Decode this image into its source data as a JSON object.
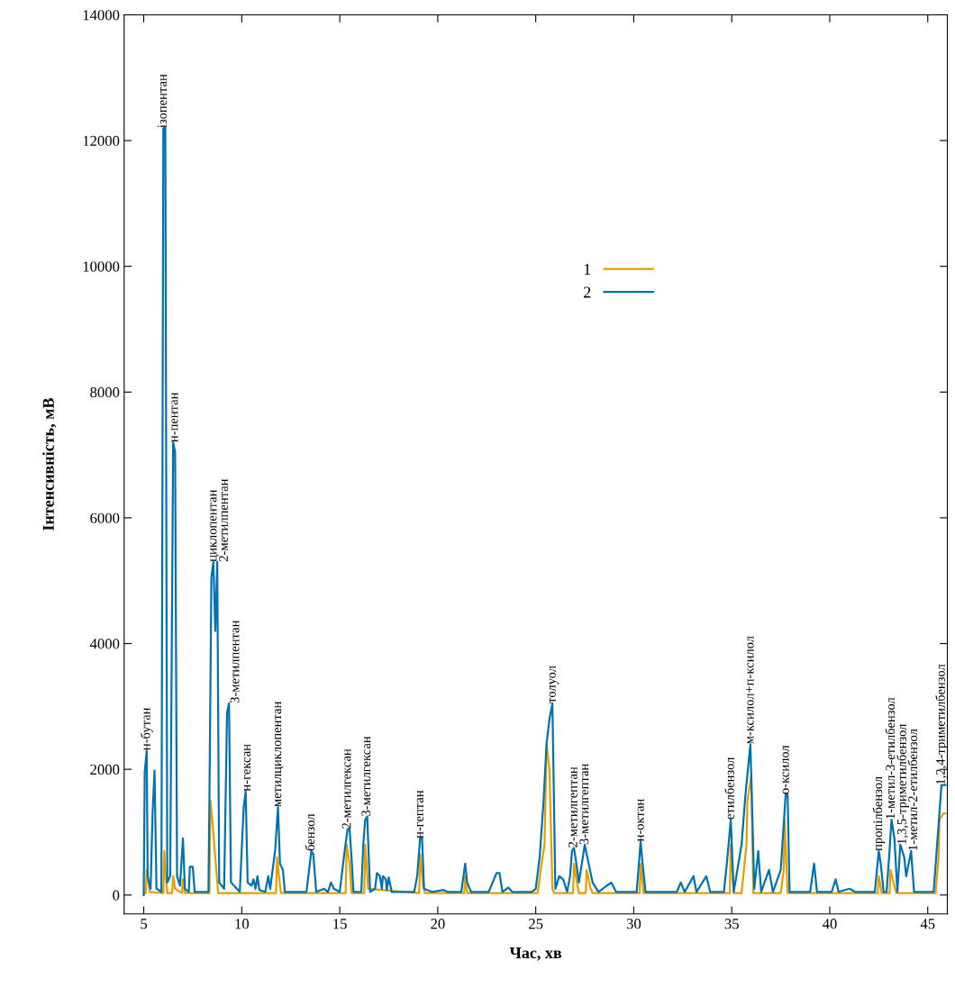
{
  "chart_data": {
    "type": "line",
    "xlabel": "Час, хв",
    "ylabel": "Інтенсивність, мВ",
    "xlim": [
      4,
      46
    ],
    "ylim": [
      -300,
      14000
    ],
    "xticks": [
      5,
      10,
      15,
      20,
      25,
      30,
      35,
      40,
      45
    ],
    "yticks": [
      0,
      2000,
      4000,
      6000,
      8000,
      10000,
      12000,
      14000
    ],
    "grid": false,
    "legend": "top",
    "marker": "none",
    "line_style": "solid",
    "series": [
      {
        "name": "1",
        "color": "#e69f00",
        "x": [
          5.0,
          5.1,
          5.15,
          5.3,
          6.0,
          6.05,
          6.1,
          6.2,
          6.45,
          6.5,
          6.6,
          6.95,
          7.0,
          7.1,
          8.35,
          8.4,
          8.5,
          8.7,
          8.8,
          11.75,
          11.8,
          11.9,
          12.0,
          15.3,
          15.35,
          15.5,
          15.6,
          16.25,
          16.3,
          16.45,
          19.05,
          19.1,
          19.25,
          19.35,
          21.35,
          21.4,
          21.5,
          21.6,
          25.1,
          25.3,
          25.45,
          25.55,
          25.7,
          25.85,
          25.95,
          26.9,
          26.95,
          27.1,
          27.2,
          27.55,
          27.6,
          27.8,
          27.9,
          30.3,
          30.35,
          30.5,
          34.9,
          34.95,
          35.1,
          35.5,
          35.75,
          35.8,
          36.0,
          36.1,
          37.5,
          37.65,
          37.7,
          37.85,
          42.45,
          42.5,
          42.65,
          43.05,
          43.1,
          43.25,
          43.4,
          45.4,
          45.55,
          45.6,
          45.8,
          45.9
        ],
        "values": [
          30,
          30,
          400,
          50,
          30,
          700,
          400,
          30,
          30,
          300,
          100,
          30,
          250,
          30,
          30,
          1500,
          1200,
          400,
          30,
          30,
          600,
          300,
          30,
          30,
          800,
          500,
          30,
          30,
          800,
          100,
          30,
          650,
          150,
          30,
          30,
          300,
          30,
          30,
          30,
          500,
          800,
          2400,
          2000,
          100,
          30,
          30,
          500,
          200,
          30,
          30,
          400,
          100,
          30,
          30,
          500,
          30,
          30,
          800,
          30,
          30,
          800,
          1500,
          1900,
          30,
          30,
          400,
          1200,
          30,
          30,
          300,
          30,
          30,
          400,
          200,
          30,
          30,
          600,
          1200,
          1300,
          1300
        ]
      },
      {
        "name": "2",
        "color": "#0072b2",
        "x": [
          5.0,
          5.05,
          5.15,
          5.2,
          5.35,
          5.45,
          5.55,
          5.65,
          5.9,
          6.0,
          6.1,
          6.2,
          6.35,
          6.5,
          6.6,
          6.7,
          6.85,
          7.0,
          7.1,
          7.3,
          7.35,
          7.5,
          7.6,
          8.3,
          8.35,
          8.45,
          8.55,
          8.65,
          8.75,
          8.85,
          9.1,
          9.25,
          9.35,
          9.45,
          9.9,
          10.1,
          10.2,
          10.3,
          10.5,
          10.6,
          10.7,
          10.8,
          10.9,
          11.2,
          11.35,
          11.45,
          11.7,
          11.85,
          11.95,
          12.1,
          12.2,
          13.3,
          13.55,
          13.65,
          13.8,
          14.2,
          14.4,
          14.55,
          14.7,
          15.0,
          15.25,
          15.4,
          15.5,
          15.6,
          15.7,
          16.1,
          16.2,
          16.3,
          16.4,
          16.55,
          16.8,
          16.9,
          17.05,
          17.15,
          17.2,
          17.35,
          17.4,
          17.5,
          17.65,
          18.8,
          18.95,
          19.1,
          19.2,
          19.3,
          19.7,
          20.3,
          20.5,
          21.2,
          21.4,
          21.5,
          21.7,
          22.6,
          22.8,
          23.0,
          23.15,
          23.3,
          23.6,
          23.8,
          24.8,
          25.0,
          25.2,
          25.4,
          25.55,
          25.7,
          25.85,
          26.0,
          26.2,
          26.4,
          26.6,
          26.75,
          26.85,
          26.95,
          27.05,
          27.2,
          27.5,
          27.7,
          27.9,
          28.2,
          28.85,
          29.1,
          30.15,
          30.35,
          30.45,
          30.6,
          32.2,
          32.4,
          32.6,
          33.05,
          33.2,
          33.7,
          33.9,
          34.6,
          34.75,
          34.95,
          35.1,
          35.5,
          35.7,
          35.95,
          36.15,
          36.35,
          36.5,
          36.9,
          37.1,
          37.5,
          37.75,
          37.85,
          37.95,
          39.0,
          39.2,
          39.35,
          40.1,
          40.3,
          40.45,
          41.0,
          41.3,
          42.3,
          42.5,
          42.6,
          42.75,
          42.9,
          43.05,
          43.15,
          43.3,
          43.45,
          43.6,
          43.8,
          43.9,
          44.15,
          44.3,
          45.3,
          45.5,
          45.7,
          45.9
        ],
        "values": [
          0,
          1950,
          2300,
          300,
          100,
          1300,
          1980,
          100,
          50,
          12200,
          12200,
          200,
          300,
          7200,
          7050,
          300,
          150,
          900,
          100,
          50,
          450,
          450,
          50,
          50,
          1500,
          5050,
          5300,
          4200,
          5300,
          200,
          100,
          2900,
          3050,
          200,
          50,
          1400,
          1650,
          200,
          150,
          250,
          100,
          300,
          80,
          50,
          300,
          100,
          700,
          1400,
          500,
          400,
          50,
          50,
          700,
          650,
          50,
          100,
          50,
          200,
          100,
          50,
          700,
          1050,
          1050,
          600,
          50,
          50,
          800,
          1200,
          1250,
          50,
          100,
          350,
          300,
          100,
          300,
          250,
          80,
          280,
          50,
          50,
          300,
          900,
          900,
          100,
          50,
          80,
          50,
          50,
          500,
          200,
          50,
          50,
          200,
          350,
          350,
          50,
          120,
          50,
          50,
          100,
          600,
          1500,
          2400,
          2800,
          3050,
          100,
          300,
          250,
          50,
          300,
          700,
          750,
          550,
          200,
          800,
          500,
          200,
          50,
          200,
          50,
          50,
          850,
          500,
          50,
          50,
          200,
          50,
          300,
          50,
          300,
          50,
          50,
          500,
          1200,
          50,
          800,
          1600,
          2400,
          100,
          700,
          50,
          400,
          50,
          400,
          1600,
          1600,
          50,
          50,
          500,
          50,
          50,
          250,
          50,
          100,
          50,
          50,
          700,
          500,
          50,
          50,
          700,
          1200,
          900,
          50,
          800,
          600,
          300,
          700,
          50,
          50,
          900,
          1750,
          1750
        ]
      }
    ],
    "annotations": [
      {
        "text": "н-бутан",
        "x": 5.15,
        "y": 2300
      },
      {
        "text": "ізопентан",
        "x": 6.0,
        "y": 12200
      },
      {
        "text": "н-пентан",
        "x": 6.5,
        "y": 7200
      },
      {
        "text": "циклопентан",
        "x": 8.55,
        "y": 5300
      },
      {
        "text": "2-метилпентан",
        "x": 8.75,
        "y": 5300
      },
      {
        "text": "3-метилпентан",
        "x": 9.35,
        "y": 3050
      },
      {
        "text": "н-гексан",
        "x": 10.2,
        "y": 1650
      },
      {
        "text": "метилциклопентан",
        "x": 11.85,
        "y": 1400
      },
      {
        "text": "бензол",
        "x": 13.55,
        "y": 700
      },
      {
        "text": "2-метилгексан",
        "x": 15.4,
        "y": 1050
      },
      {
        "text": "3-метилгексан",
        "x": 16.4,
        "y": 1250
      },
      {
        "text": "н-гептан",
        "x": 19.1,
        "y": 900
      },
      {
        "text": "толуол",
        "x": 25.85,
        "y": 3050
      },
      {
        "text": "2-метилгептан",
        "x": 26.95,
        "y": 750
      },
      {
        "text": "3-метилгептан",
        "x": 27.5,
        "y": 800
      },
      {
        "text": "н-октан",
        "x": 30.35,
        "y": 850
      },
      {
        "text": "етилбензол",
        "x": 34.95,
        "y": 1200
      },
      {
        "text": "м-ксилол+п-ксилол",
        "x": 35.95,
        "y": 2400
      },
      {
        "text": "о-ксилол",
        "x": 37.75,
        "y": 1600
      },
      {
        "text": "пропілбензол",
        "x": 42.5,
        "y": 700
      },
      {
        "text": "1-метил-3-етилбензол",
        "x": 43.15,
        "y": 1200
      },
      {
        "text": "1,3,5-триметилбензол",
        "x": 43.6,
        "y": 800
      },
      {
        "text": "1-метил-2-етилбензол",
        "x": 44.15,
        "y": 700
      },
      {
        "text": "1,2,4-триметилбензол",
        "x": 45.7,
        "y": 1750
      }
    ]
  }
}
